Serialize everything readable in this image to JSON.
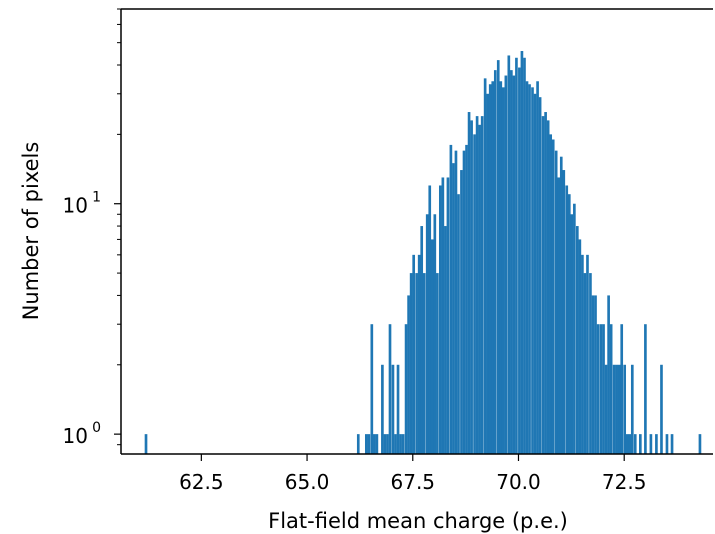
{
  "chart_data": {
    "type": "bar",
    "subtype": "histogram",
    "title": "",
    "xlabel": "Flat-field mean charge (p.e.)",
    "ylabel": "Number of pixels",
    "y_scale": "log",
    "xlim": [
      60.6,
      74.6
    ],
    "ylim": [
      0.82,
      70
    ],
    "grid": false,
    "color": "#1f77b4",
    "x_ticks": [
      62.5,
      65.0,
      67.5,
      70.0,
      72.5
    ],
    "x_tick_labels": [
      "62.5",
      "65.0",
      "67.5",
      "70.0",
      "72.5"
    ],
    "y_ticks": [
      {
        "value": 1,
        "base": "10",
        "exp": "0"
      },
      {
        "value": 10,
        "base": "10",
        "exp": "1"
      }
    ],
    "bin_width": 0.063,
    "bins": [
      {
        "x": 61.16,
        "count": 1
      },
      {
        "x": 66.18,
        "count": 1
      },
      {
        "x": 66.37,
        "count": 1
      },
      {
        "x": 66.43,
        "count": 1
      },
      {
        "x": 66.5,
        "count": 3
      },
      {
        "x": 66.56,
        "count": 1
      },
      {
        "x": 66.62,
        "count": 1
      },
      {
        "x": 66.75,
        "count": 2
      },
      {
        "x": 66.81,
        "count": 1
      },
      {
        "x": 66.87,
        "count": 1
      },
      {
        "x": 66.93,
        "count": 3
      },
      {
        "x": 67.0,
        "count": 2
      },
      {
        "x": 67.06,
        "count": 1
      },
      {
        "x": 67.12,
        "count": 2
      },
      {
        "x": 67.18,
        "count": 1
      },
      {
        "x": 67.24,
        "count": 1
      },
      {
        "x": 67.31,
        "count": 3
      },
      {
        "x": 67.37,
        "count": 4
      },
      {
        "x": 67.43,
        "count": 5
      },
      {
        "x": 67.49,
        "count": 6
      },
      {
        "x": 67.56,
        "count": 5
      },
      {
        "x": 67.62,
        "count": 6
      },
      {
        "x": 67.68,
        "count": 8
      },
      {
        "x": 67.74,
        "count": 5
      },
      {
        "x": 67.81,
        "count": 9
      },
      {
        "x": 67.87,
        "count": 12
      },
      {
        "x": 67.93,
        "count": 7
      },
      {
        "x": 67.99,
        "count": 9
      },
      {
        "x": 68.05,
        "count": 5
      },
      {
        "x": 68.12,
        "count": 12
      },
      {
        "x": 68.18,
        "count": 13
      },
      {
        "x": 68.24,
        "count": 8
      },
      {
        "x": 68.3,
        "count": 13
      },
      {
        "x": 68.37,
        "count": 18
      },
      {
        "x": 68.43,
        "count": 15
      },
      {
        "x": 68.49,
        "count": 17
      },
      {
        "x": 68.55,
        "count": 11
      },
      {
        "x": 68.62,
        "count": 14
      },
      {
        "x": 68.68,
        "count": 17
      },
      {
        "x": 68.74,
        "count": 18
      },
      {
        "x": 68.8,
        "count": 25
      },
      {
        "x": 68.86,
        "count": 23
      },
      {
        "x": 68.93,
        "count": 20
      },
      {
        "x": 68.99,
        "count": 24
      },
      {
        "x": 69.05,
        "count": 22
      },
      {
        "x": 69.11,
        "count": 24
      },
      {
        "x": 69.18,
        "count": 35
      },
      {
        "x": 69.24,
        "count": 30
      },
      {
        "x": 69.3,
        "count": 33
      },
      {
        "x": 69.36,
        "count": 34
      },
      {
        "x": 69.42,
        "count": 38
      },
      {
        "x": 69.49,
        "count": 42
      },
      {
        "x": 69.55,
        "count": 34
      },
      {
        "x": 69.61,
        "count": 32
      },
      {
        "x": 69.67,
        "count": 36
      },
      {
        "x": 69.74,
        "count": 44
      },
      {
        "x": 69.8,
        "count": 38
      },
      {
        "x": 69.86,
        "count": 36
      },
      {
        "x": 69.92,
        "count": 43
      },
      {
        "x": 69.99,
        "count": 39
      },
      {
        "x": 70.05,
        "count": 46
      },
      {
        "x": 70.11,
        "count": 43
      },
      {
        "x": 70.17,
        "count": 34
      },
      {
        "x": 70.23,
        "count": 33
      },
      {
        "x": 70.3,
        "count": 32
      },
      {
        "x": 70.36,
        "count": 30
      },
      {
        "x": 70.42,
        "count": 34
      },
      {
        "x": 70.48,
        "count": 29
      },
      {
        "x": 70.55,
        "count": 24
      },
      {
        "x": 70.61,
        "count": 25
      },
      {
        "x": 70.67,
        "count": 23
      },
      {
        "x": 70.73,
        "count": 20
      },
      {
        "x": 70.79,
        "count": 19
      },
      {
        "x": 70.86,
        "count": 17
      },
      {
        "x": 70.92,
        "count": 13
      },
      {
        "x": 70.98,
        "count": 16
      },
      {
        "x": 71.04,
        "count": 14
      },
      {
        "x": 71.11,
        "count": 12
      },
      {
        "x": 71.17,
        "count": 11
      },
      {
        "x": 71.23,
        "count": 9
      },
      {
        "x": 71.29,
        "count": 10
      },
      {
        "x": 71.36,
        "count": 8
      },
      {
        "x": 71.42,
        "count": 7
      },
      {
        "x": 71.48,
        "count": 6
      },
      {
        "x": 71.54,
        "count": 5
      },
      {
        "x": 71.6,
        "count": 6
      },
      {
        "x": 71.67,
        "count": 5
      },
      {
        "x": 71.73,
        "count": 4
      },
      {
        "x": 71.79,
        "count": 4
      },
      {
        "x": 71.85,
        "count": 3
      },
      {
        "x": 71.92,
        "count": 3
      },
      {
        "x": 71.98,
        "count": 3
      },
      {
        "x": 72.04,
        "count": 2
      },
      {
        "x": 72.1,
        "count": 4
      },
      {
        "x": 72.16,
        "count": 3
      },
      {
        "x": 72.23,
        "count": 2
      },
      {
        "x": 72.29,
        "count": 2
      },
      {
        "x": 72.35,
        "count": 2
      },
      {
        "x": 72.41,
        "count": 3
      },
      {
        "x": 72.48,
        "count": 2
      },
      {
        "x": 72.54,
        "count": 1
      },
      {
        "x": 72.6,
        "count": 1
      },
      {
        "x": 72.66,
        "count": 2
      },
      {
        "x": 72.73,
        "count": 1
      },
      {
        "x": 72.85,
        "count": 1
      },
      {
        "x": 72.97,
        "count": 3
      },
      {
        "x": 73.1,
        "count": 1
      },
      {
        "x": 73.23,
        "count": 1
      },
      {
        "x": 73.35,
        "count": 2
      },
      {
        "x": 73.48,
        "count": 1
      },
      {
        "x": 73.6,
        "count": 1
      },
      {
        "x": 74.26,
        "count": 1
      }
    ]
  }
}
